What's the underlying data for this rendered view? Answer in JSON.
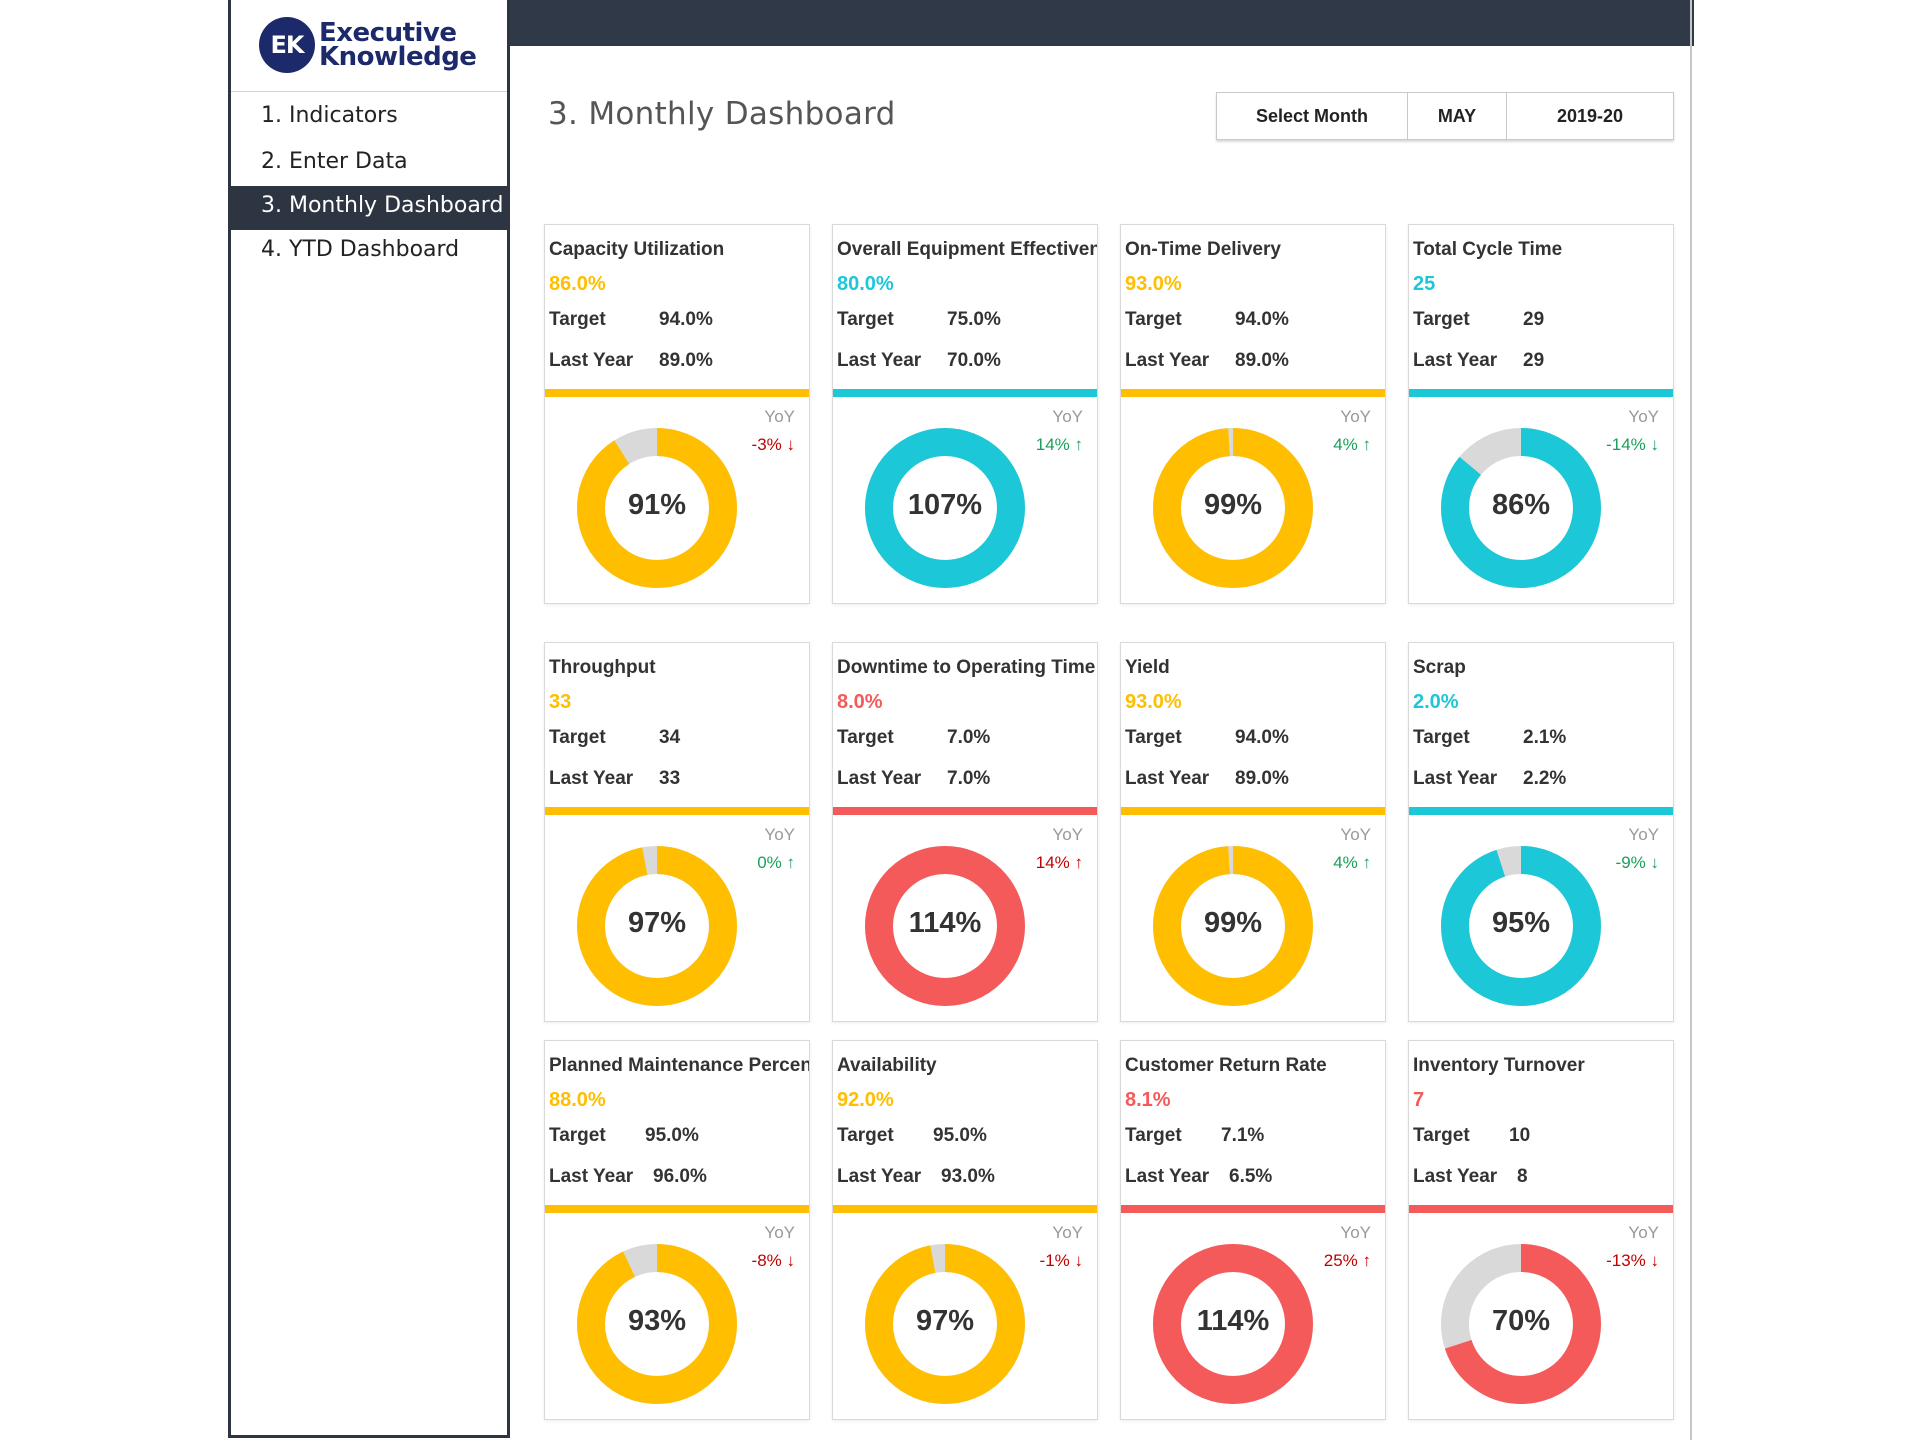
{
  "brand": {
    "mark": "EK",
    "line1": "Executive",
    "line2": "Knowledge"
  },
  "nav": [
    {
      "label": "1. Indicators",
      "active": false
    },
    {
      "label": "2. Enter Data",
      "active": false
    },
    {
      "label": "3. Monthly Dashboard",
      "active": true
    },
    {
      "label": "4. YTD Dashboard",
      "active": false
    }
  ],
  "page": {
    "title": "3. Monthly Dashboard"
  },
  "selector": {
    "label": "Select Month",
    "month": "MAY",
    "year": "2019-20"
  },
  "colors": {
    "yellow": "#FFBE00",
    "cyan": "#1CC7D8",
    "red": "#F55A5A",
    "gray": "#D9D9D9",
    "up": "#1aa05a",
    "down": "#c00000"
  },
  "chart_data": {
    "type": "donut-grid",
    "cards": [
      {
        "name": "Capacity Utilization",
        "value": "86.0%",
        "target_label": "Target",
        "target": "94.0%",
        "last_label": "Last Year",
        "last_year": "89.0%",
        "color": "yellow",
        "pct": 91,
        "pct_label": "91%",
        "yoy_label": "YoY",
        "yoy": "-3% ↓",
        "yoy_dir": "down"
      },
      {
        "name": "Overall Equipment Effectiveness",
        "value": "80.0%",
        "target_label": "Target",
        "target": "75.0%",
        "last_label": "Last Year",
        "last_year": "70.0%",
        "color": "cyan",
        "pct": 107,
        "pct_label": "107%",
        "yoy_label": "YoY",
        "yoy": "14% ↑",
        "yoy_dir": "up"
      },
      {
        "name": "On-Time Delivery",
        "value": "93.0%",
        "target_label": "Target",
        "target": "94.0%",
        "last_label": "Last Year",
        "last_year": "89.0%",
        "color": "yellow",
        "pct": 99,
        "pct_label": "99%",
        "yoy_label": "YoY",
        "yoy": "4% ↑",
        "yoy_dir": "up"
      },
      {
        "name": "Total Cycle Time",
        "value": "25",
        "target_label": "Target",
        "target": "29",
        "last_label": "Last Year",
        "last_year": "29",
        "color": "cyan",
        "pct": 86,
        "pct_label": "86%",
        "yoy_label": "YoY",
        "yoy": "-14% ↓",
        "yoy_dir": "up"
      },
      {
        "name": "Throughput",
        "value": "33",
        "target_label": "Target",
        "target": "34",
        "last_label": "Last Year",
        "last_year": "33",
        "color": "yellow",
        "pct": 97,
        "pct_label": "97%",
        "yoy_label": "YoY",
        "yoy": "0% ↑",
        "yoy_dir": "up"
      },
      {
        "name": "Downtime to Operating Time",
        "value": "8.0%",
        "target_label": "Target",
        "target": "7.0%",
        "last_label": "Last Year",
        "last_year": "7.0%",
        "color": "red",
        "pct": 114,
        "pct_label": "114%",
        "yoy_label": "YoY",
        "yoy": "14% ↑",
        "yoy_dir": "down"
      },
      {
        "name": "Yield",
        "value": "93.0%",
        "target_label": "Target",
        "target": "94.0%",
        "last_label": "Last Year",
        "last_year": "89.0%",
        "color": "yellow",
        "pct": 99,
        "pct_label": "99%",
        "yoy_label": "YoY",
        "yoy": "4% ↑",
        "yoy_dir": "up"
      },
      {
        "name": "Scrap",
        "value": "2.0%",
        "target_label": "Target",
        "target": "2.1%",
        "last_label": "Last Year",
        "last_year": "2.2%",
        "color": "cyan",
        "pct": 95,
        "pct_label": "95%",
        "yoy_label": "YoY",
        "yoy": "-9% ↓",
        "yoy_dir": "up"
      },
      {
        "name": "Planned Maintenance Percentage",
        "value": "88.0%",
        "target_label": "Target",
        "target": "95.0%",
        "last_label": "Last Year",
        "last_year": "96.0%",
        "color": "yellow",
        "pct": 93,
        "pct_label": "93%",
        "yoy_label": "YoY",
        "yoy": "-8% ↓",
        "yoy_dir": "down"
      },
      {
        "name": "Availability",
        "value": "92.0%",
        "target_label": "Target",
        "target": "95.0%",
        "last_label": "Last Year",
        "last_year": "93.0%",
        "color": "yellow",
        "pct": 97,
        "pct_label": "97%",
        "yoy_label": "YoY",
        "yoy": "-1% ↓",
        "yoy_dir": "down"
      },
      {
        "name": "Customer Return Rate",
        "value": "8.1%",
        "target_label": "Target",
        "target": "7.1%",
        "last_label": "Last Year",
        "last_year": "6.5%",
        "color": "red",
        "pct": 114,
        "pct_label": "114%",
        "yoy_label": "YoY",
        "yoy": "25% ↑",
        "yoy_dir": "down"
      },
      {
        "name": "Inventory Turnover",
        "value": "7",
        "target_label": "Target",
        "target": "10",
        "last_label": "Last Year",
        "last_year": "8",
        "color": "red",
        "pct": 70,
        "pct_label": "70%",
        "yoy_label": "YoY",
        "yoy": "-13% ↓",
        "yoy_dir": "down"
      }
    ]
  }
}
